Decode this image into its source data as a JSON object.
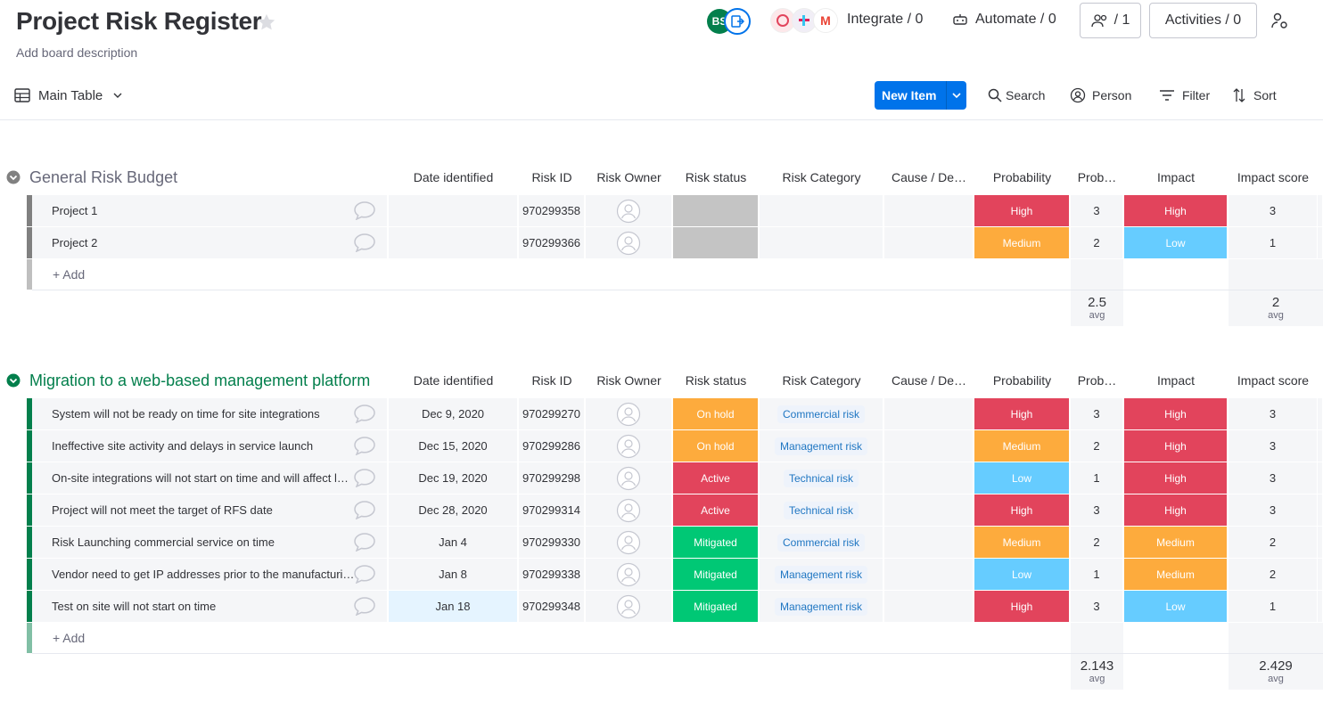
{
  "board": {
    "title": "Project Risk Register",
    "description": "Add board description"
  },
  "header": {
    "avatar_initials": "BS",
    "integrate": "Integrate / 0",
    "automate": "Automate / 0",
    "members_count": "/ 1",
    "activities": "Activities / 0"
  },
  "toolbar": {
    "view": "Main Table",
    "new_item": "New Item",
    "search": "Search",
    "person": "Person",
    "filter": "Filter",
    "sort": "Sort"
  },
  "columns": [
    "Date identified",
    "Risk ID",
    "Risk Owner",
    "Risk status",
    "Risk Category",
    "Cause / De…",
    "Probability",
    "Prob…",
    "Impact",
    "Impact score"
  ],
  "colors": {
    "High": "#e2445c",
    "Medium": "#fdab3d",
    "Low": "#66ccff",
    "On hold": "#fdab3d",
    "Active": "#e2445c",
    "Mitigated": "#00c875",
    "Blank": "#c4c4c4"
  },
  "groups": [
    {
      "title": "General Risk Budget",
      "color": "#808080",
      "title_color": "#676879",
      "add_label": "+ Add",
      "rows": [
        {
          "name": "Project 1",
          "date": "",
          "id": "970299358",
          "status": "",
          "category": "",
          "probability": "High",
          "prob_score": "3",
          "impact": "High",
          "impact_score": "3"
        },
        {
          "name": "Project 2",
          "date": "",
          "id": "970299366",
          "status": "",
          "category": "",
          "probability": "Medium",
          "prob_score": "2",
          "impact": "Low",
          "impact_score": "1"
        }
      ],
      "summary": {
        "prob": "2.5",
        "impact": "2",
        "label": "avg"
      }
    },
    {
      "title": "Migration to a web-based management platform",
      "color": "#037f4c",
      "title_color": "#037f4c",
      "add_label": "+ Add",
      "rows": [
        {
          "name": "System will not be ready on time for site integrations",
          "date": "Dec 9, 2020",
          "id": "970299270",
          "status": "On hold",
          "category": "Commercial risk",
          "probability": "High",
          "prob_score": "3",
          "impact": "High",
          "impact_score": "3"
        },
        {
          "name": "Ineffective site activity and delays in service launch",
          "date": "Dec 15, 2020",
          "id": "970299286",
          "status": "On hold",
          "category": "Management risk",
          "probability": "Medium",
          "prob_score": "2",
          "impact": "High",
          "impact_score": "3"
        },
        {
          "name": "On-site integrations will not start on time and will affect l…",
          "date": "Dec 19, 2020",
          "id": "970299298",
          "status": "Active",
          "category": "Technical risk",
          "probability": "Low",
          "prob_score": "1",
          "impact": "High",
          "impact_score": "3"
        },
        {
          "name": "Project will not meet the target of RFS date",
          "date": "Dec 28, 2020",
          "id": "970299314",
          "status": "Active",
          "category": "Technical risk",
          "probability": "High",
          "prob_score": "3",
          "impact": "High",
          "impact_score": "3"
        },
        {
          "name": "Risk Launching commercial service on time",
          "date": "Jan 4",
          "id": "970299330",
          "status": "Mitigated",
          "category": "Commercial risk",
          "probability": "Medium",
          "prob_score": "2",
          "impact": "Medium",
          "impact_score": "2"
        },
        {
          "name": "Vendor need to get IP addresses prior to the manufacturi…",
          "date": "Jan 8",
          "id": "970299338",
          "status": "Mitigated",
          "category": "Management risk",
          "probability": "Low",
          "prob_score": "1",
          "impact": "Medium",
          "impact_score": "2"
        },
        {
          "name": "Test on site will not start on time",
          "date": "Jan 18",
          "id": "970299348",
          "status": "Mitigated",
          "category": "Management risk",
          "probability": "High",
          "prob_score": "3",
          "impact": "Low",
          "impact_score": "1"
        }
      ],
      "summary": {
        "prob": "2.143",
        "impact": "2.429",
        "label": "avg"
      }
    }
  ]
}
